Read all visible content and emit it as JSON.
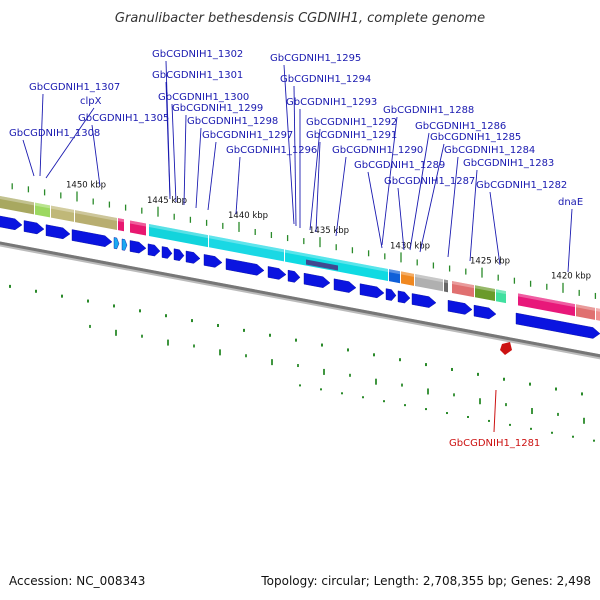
{
  "title": "Granulibacter bethesdensis CGDNIH1, complete genome",
  "gene_labels": [
    "GbCGDNIH1_1302",
    "GbCGDNIH1_1295",
    "GbCGDNIH1_1301",
    "GbCGDNIH1_1294",
    "GbCGDNIH1_1307",
    "clpX",
    "GbCGDNIH1_1300",
    "GbCGDNIH1_1293",
    "GbCGDNIH1_1288",
    "GbCGDNIH1_1299",
    "GbCGDNIH1_1305",
    "GbCGDNIH1_1298",
    "GbCGDNIH1_1292",
    "GbCGDNIH1_1286",
    "GbCGDNIH1_1308",
    "GbCGDNIH1_1297",
    "GbCGDNIH1_1291",
    "GbCGDNIH1_1285",
    "GbCGDNIH1_1296",
    "GbCGDNIH1_1290",
    "GbCGDNIH1_1284",
    "GbCGDNIH1_1289",
    "GbCGDNIH1_1283",
    "GbCGDNIH1_1287",
    "GbCGDNIH1_1282",
    "dnaE"
  ],
  "highlight_label": "GbCGDNIH1_1281",
  "ruler_labels": [
    "1450 kbp",
    "1445 kbp",
    "1440 kbp",
    "1435 kbp",
    "1430 kbp",
    "1425 kbp",
    "1420 kbp"
  ],
  "footer": {
    "accession": "Accession: NC_008343",
    "summary": "Topology: circular; Length: 2,708,355 bp; Genes: 2,498"
  },
  "colors": {
    "gene_label": "#1a1ab0",
    "highlight": "#cc1111",
    "cds_arrow": "#0a14e0",
    "cyan_feature": "#18e0e8",
    "tan_feature": "#b8b070",
    "pink_feature": "#e8186e",
    "salmon_feature": "#e87878",
    "green_feature": "#6a9a2a",
    "backbone": "#777777",
    "tick": "#2a8a2a"
  }
}
